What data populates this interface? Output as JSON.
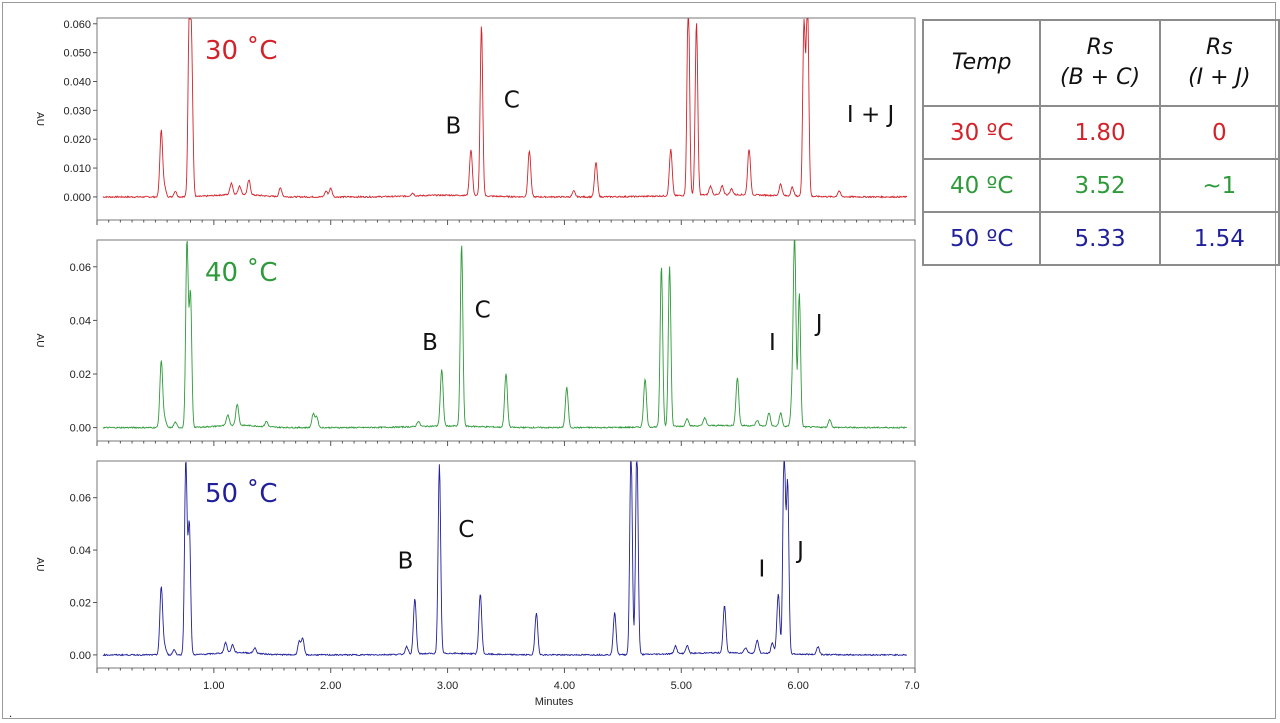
{
  "chart_data": {
    "type": "line",
    "x_axis": {
      "title": "Minutes",
      "min": 0.0,
      "max": 7.0,
      "ticks": [
        "1.00",
        "2.00",
        "3.00",
        "4.00",
        "5.00",
        "6.00",
        "7.00"
      ]
    },
    "y_axis_label": "AU",
    "panels": [
      {
        "id": "p30",
        "temperature_label": "30 ˚C",
        "color": "#d2232a",
        "y_min": -0.008,
        "y_max": 0.062,
        "y_ticks": [
          "0.000",
          "0.010",
          "0.020",
          "0.030",
          "0.040",
          "0.050",
          "0.060"
        ],
        "peak_labels": [
          {
            "text": "B",
            "x": 3.05,
            "y": 0.022
          },
          {
            "text": "C",
            "x": 3.55,
            "y": 0.031
          },
          {
            "text": "I + J",
            "x": 6.62,
            "y": 0.026
          }
        ],
        "peaks": [
          [
            0.55,
            0.023
          ],
          [
            0.58,
            0.003
          ],
          [
            0.67,
            0.002
          ],
          [
            0.79,
            0.062
          ],
          [
            0.81,
            0.045
          ],
          [
            1.15,
            0.004
          ],
          [
            1.22,
            0.003
          ],
          [
            1.3,
            0.005
          ],
          [
            1.57,
            0.003
          ],
          [
            1.96,
            0.002
          ],
          [
            2.0,
            0.003
          ],
          [
            2.7,
            0.001
          ],
          [
            3.2,
            0.016
          ],
          [
            3.29,
            0.059
          ],
          [
            3.7,
            0.016
          ],
          [
            4.08,
            0.002
          ],
          [
            4.27,
            0.012
          ],
          [
            4.91,
            0.016
          ],
          [
            5.06,
            0.07
          ],
          [
            5.13,
            0.06
          ],
          [
            5.25,
            0.003
          ],
          [
            5.35,
            0.003
          ],
          [
            5.43,
            0.002
          ],
          [
            5.58,
            0.016
          ],
          [
            5.85,
            0.004
          ],
          [
            5.95,
            0.003
          ],
          [
            6.05,
            0.06
          ],
          [
            6.08,
            0.07
          ],
          [
            6.35,
            0.002
          ]
        ]
      },
      {
        "id": "p40",
        "temperature_label": "40 ˚C",
        "color": "#2e9a3a",
        "y_min": -0.005,
        "y_max": 0.07,
        "y_ticks": [
          "0.00",
          "0.02",
          "0.04",
          "0.06"
        ],
        "peak_labels": [
          {
            "text": "B",
            "x": 2.85,
            "y": 0.029
          },
          {
            "text": "C",
            "x": 3.3,
            "y": 0.041
          },
          {
            "text": "I",
            "x": 5.78,
            "y": 0.029
          },
          {
            "text": "J",
            "x": 6.18,
            "y": 0.036
          }
        ],
        "peaks": [
          [
            0.55,
            0.025
          ],
          [
            0.58,
            0.003
          ],
          [
            0.67,
            0.002
          ],
          [
            0.77,
            0.07
          ],
          [
            0.8,
            0.05
          ],
          [
            1.12,
            0.004
          ],
          [
            1.2,
            0.008
          ],
          [
            1.45,
            0.002
          ],
          [
            1.85,
            0.005
          ],
          [
            1.88,
            0.004
          ],
          [
            2.75,
            0.002
          ],
          [
            2.95,
            0.021
          ],
          [
            3.12,
            0.068
          ],
          [
            3.5,
            0.02
          ],
          [
            4.02,
            0.015
          ],
          [
            4.69,
            0.018
          ],
          [
            4.83,
            0.06
          ],
          [
            4.9,
            0.06
          ],
          [
            5.05,
            0.003
          ],
          [
            5.2,
            0.003
          ],
          [
            5.48,
            0.018
          ],
          [
            5.65,
            0.002
          ],
          [
            5.75,
            0.005
          ],
          [
            5.85,
            0.005
          ],
          [
            5.95,
            0.012
          ],
          [
            5.97,
            0.07
          ],
          [
            6.01,
            0.05
          ],
          [
            6.27,
            0.003
          ]
        ]
      },
      {
        "id": "p50",
        "temperature_label": "50 ˚C",
        "color": "#20209a",
        "y_min": -0.005,
        "y_max": 0.074,
        "y_ticks": [
          "0.00",
          "0.02",
          "0.04",
          "0.06"
        ],
        "peak_labels": [
          {
            "text": "B",
            "x": 2.64,
            "y": 0.033
          },
          {
            "text": "C",
            "x": 3.16,
            "y": 0.045
          },
          {
            "text": "I",
            "x": 5.69,
            "y": 0.03
          },
          {
            "text": "J",
            "x": 6.02,
            "y": 0.037
          }
        ],
        "peaks": [
          [
            0.55,
            0.026
          ],
          [
            0.58,
            0.003
          ],
          [
            0.66,
            0.002
          ],
          [
            0.76,
            0.074
          ],
          [
            0.79,
            0.05
          ],
          [
            1.1,
            0.004
          ],
          [
            1.16,
            0.003
          ],
          [
            1.35,
            0.002
          ],
          [
            1.73,
            0.005
          ],
          [
            1.76,
            0.006
          ],
          [
            2.65,
            0.003
          ],
          [
            2.72,
            0.021
          ],
          [
            2.93,
            0.072
          ],
          [
            3.28,
            0.023
          ],
          [
            3.76,
            0.016
          ],
          [
            4.43,
            0.016
          ],
          [
            4.57,
            0.08
          ],
          [
            4.62,
            0.08
          ],
          [
            4.95,
            0.003
          ],
          [
            5.05,
            0.003
          ],
          [
            5.37,
            0.018
          ],
          [
            5.55,
            0.002
          ],
          [
            5.65,
            0.005
          ],
          [
            5.78,
            0.004
          ],
          [
            5.83,
            0.023
          ],
          [
            5.88,
            0.08
          ],
          [
            5.91,
            0.065
          ],
          [
            6.17,
            0.003
          ]
        ]
      }
    ]
  },
  "table": {
    "headers": [
      [
        "Temp"
      ],
      [
        "Rs",
        "(B + C)"
      ],
      [
        "Rs",
        "(I + J)"
      ]
    ],
    "rows": [
      {
        "color": "#d2232a",
        "cells": [
          "30 ºC",
          "1.80",
          "0"
        ]
      },
      {
        "color": "#2e9a3a",
        "cells": [
          "40 ºC",
          "3.52",
          "~1"
        ]
      },
      {
        "color": "#20209a",
        "cells": [
          "50 ºC",
          "5.33",
          "1.54"
        ]
      }
    ]
  },
  "footnote_mark": "."
}
